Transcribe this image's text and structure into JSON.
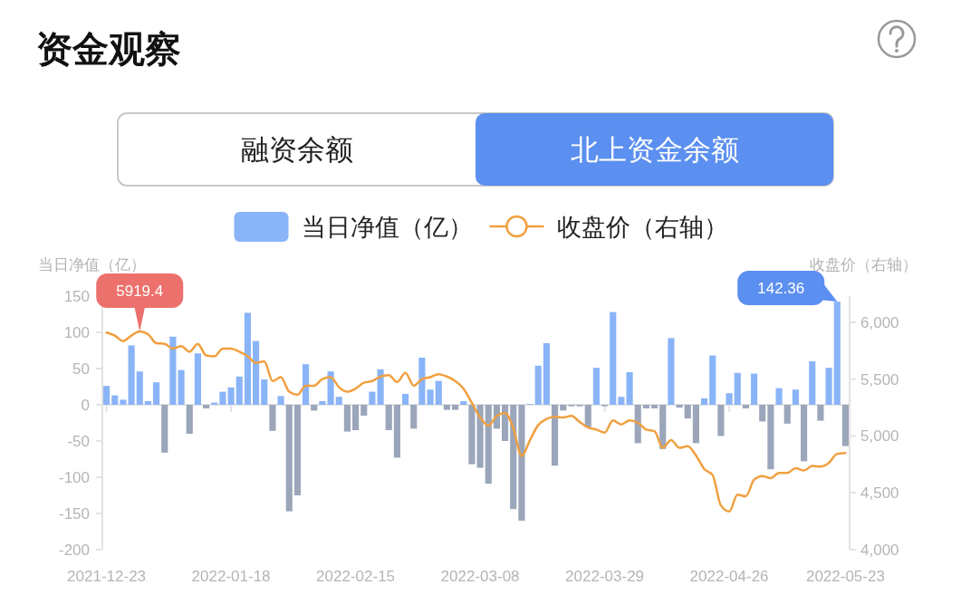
{
  "chart_data": {
    "type": "bar",
    "title": "资金观察",
    "legend": "top",
    "ylabel": "当日净值（亿）",
    "y2label": "收盘价（右轴）",
    "categories": [
      "2021-12-23",
      null,
      null,
      null,
      null,
      null,
      null,
      null,
      null,
      null,
      null,
      null,
      null,
      null,
      null,
      "2022-01-18",
      null,
      null,
      null,
      null,
      null,
      null,
      null,
      null,
      null,
      null,
      null,
      null,
      null,
      null,
      "2022-02-15",
      null,
      null,
      null,
      null,
      null,
      null,
      null,
      null,
      null,
      null,
      null,
      null,
      null,
      null,
      "2022-03-08",
      null,
      null,
      null,
      null,
      null,
      null,
      null,
      null,
      null,
      null,
      null,
      null,
      null,
      null,
      "2022-03-29",
      null,
      null,
      null,
      null,
      null,
      null,
      null,
      null,
      null,
      null,
      null,
      null,
      null,
      null,
      "2022-04-26",
      null,
      null,
      null,
      null,
      null,
      null,
      null,
      null,
      null,
      null,
      null,
      null,
      null,
      "2022-05-23"
    ],
    "ylim": [
      -200,
      150
    ],
    "yticks": [
      -200,
      -150,
      -100,
      -50,
      0,
      50,
      100,
      150
    ],
    "y2lim": [
      4000,
      6230
    ],
    "y2ticks": [
      {
        "value": 4000,
        "label": "4,000"
      },
      {
        "value": 4500,
        "label": "4,500"
      },
      {
        "value": 5000,
        "label": "5,000"
      },
      {
        "value": 5500,
        "label": "5,500"
      },
      {
        "value": 6000,
        "label": "6,000"
      }
    ],
    "series": [
      {
        "name": "当日净值（亿）",
        "color": "#8ab4f8",
        "colors": [
          "#8ab4f8",
          "#8ab4f8",
          "#8ab4f8",
          "#8ab4f8",
          "#8ab4f8",
          "#8ab4f8",
          "#8ab4f8",
          "#9ba6ba",
          "#8ab4f8",
          "#8ab4f8",
          "#9ba6ba",
          "#8ab4f8",
          "#9ba6ba",
          "#8ab4f8",
          "#8ab4f8",
          "#8ab4f8",
          "#8ab4f8",
          "#8ab4f8",
          "#8ab4f8",
          "#8ab4f8",
          "#9ba6ba",
          "#8ab4f8",
          "#9ba6ba",
          "#9ba6ba",
          "#8ab4f8",
          "#9ba6ba",
          "#8ab4f8",
          "#8ab4f8",
          "#8ab4f8",
          "#9ba6ba",
          "#9ba6ba",
          "#9ba6ba",
          "#8ab4f8",
          "#8ab4f8",
          "#9ba6ba",
          "#9ba6ba",
          "#8ab4f8",
          "#9ba6ba",
          "#8ab4f8",
          "#8ab4f8",
          "#8ab4f8",
          "#9ba6ba",
          "#9ba6ba",
          "#8ab4f8",
          "#9ba6ba",
          "#9ba6ba",
          "#9ba6ba",
          "#9ba6ba",
          "#9ba6ba",
          "#9ba6ba",
          "#9ba6ba",
          "#8ab4f8",
          "#8ab4f8",
          "#8ab4f8",
          "#9ba6ba",
          "#9ba6ba",
          "#9ba6ba",
          "#9ba6ba",
          "#9ba6ba",
          "#8ab4f8",
          "#9ba6ba",
          "#8ab4f8",
          "#8ab4f8",
          "#8ab4f8",
          "#9ba6ba",
          "#9ba6ba",
          "#9ba6ba",
          "#9ba6ba",
          "#8ab4f8",
          "#9ba6ba",
          "#9ba6ba",
          "#9ba6ba",
          "#8ab4f8",
          "#8ab4f8",
          "#9ba6ba",
          "#8ab4f8",
          "#8ab4f8",
          "#9ba6ba",
          "#8ab4f8",
          "#9ba6ba",
          "#9ba6ba",
          "#8ab4f8",
          "#9ba6ba",
          "#8ab4f8",
          "#9ba6ba",
          "#8ab4f8",
          "#9ba6ba",
          "#8ab4f8",
          "#8ab4f8",
          "#9ba6ba"
        ],
        "values": [
          26,
          13,
          7,
          82,
          46,
          5,
          31,
          -66,
          94,
          48,
          -40,
          71,
          -5,
          3,
          18,
          24,
          39,
          127,
          88,
          35,
          -36,
          12,
          -147,
          -125,
          56,
          -8,
          5,
          46,
          11,
          -37,
          -35,
          -15,
          18,
          49,
          -35,
          -73,
          15,
          -33,
          65,
          21,
          33,
          -7,
          -7,
          5,
          -82,
          -87,
          -109,
          -33,
          -50,
          -144,
          -160,
          1,
          54,
          85,
          -84,
          -8,
          -2,
          -2,
          -31,
          51,
          -2,
          128,
          11,
          45,
          -53,
          -5,
          -5,
          -61,
          92,
          -4,
          -19,
          -53,
          9,
          68,
          -43,
          16,
          44,
          -5,
          43,
          -23,
          -89,
          23,
          -26,
          21,
          -78,
          60,
          -22,
          51,
          142.36,
          -57
        ]
      },
      {
        "name": "收盘价（右轴）",
        "type": "line",
        "axis": "y2",
        "color": "#f0a040",
        "values": [
          5910,
          5883,
          5835,
          5883,
          5919.4,
          5896,
          5816,
          5810,
          5768,
          5790,
          5741,
          5810,
          5709,
          5701,
          5768,
          5768,
          5741,
          5701,
          5643,
          5656,
          5483,
          5517,
          5389,
          5362,
          5442,
          5442,
          5501,
          5517,
          5429,
          5389,
          5416,
          5469,
          5483,
          5523,
          5536,
          5474,
          5555,
          5442,
          5501,
          5517,
          5544,
          5523,
          5483,
          5416,
          5291,
          5163,
          5091,
          5176,
          5203,
          5069,
          4824,
          4963,
          5096,
          5149,
          5168,
          5163,
          5176,
          5122,
          5075,
          5056,
          5030,
          5136,
          5101,
          5136,
          5117,
          5056,
          5042,
          4896,
          4963,
          4896,
          4909,
          4829,
          4709,
          4656,
          4389,
          4336,
          4483,
          4469,
          4616,
          4648,
          4629,
          4675,
          4675,
          4717,
          4696,
          4736,
          4731,
          4763,
          4843,
          4851
        ]
      }
    ],
    "annotations": [
      "融资余额",
      "北上资金余额",
      "5919.4",
      "142.36"
    ]
  }
}
